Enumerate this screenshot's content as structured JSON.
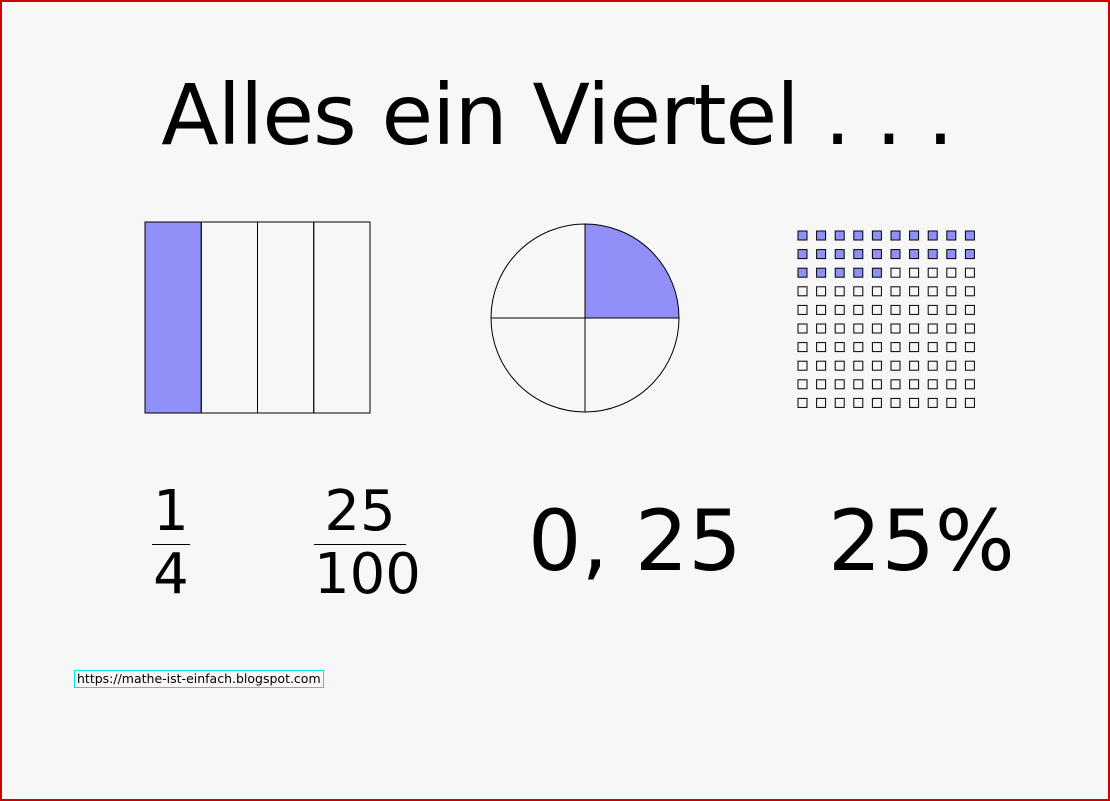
{
  "title": "Alles ein Viertel . . .",
  "colors": {
    "fill": "#9090f8",
    "stroke": "#000000",
    "background": "#f7f7f7",
    "border": "#cc0000",
    "link_border": "#00e5e5"
  },
  "rectangle_model": {
    "parts": 4,
    "shaded_parts": 1
  },
  "circle_model": {
    "parts": 4,
    "shaded_parts": 1
  },
  "grid_model": {
    "rows": 10,
    "cols": 10,
    "shaded_cells": 25
  },
  "representations": {
    "fraction": {
      "numerator": "1",
      "denominator": "4"
    },
    "fraction_hundredths": {
      "numerator": "25",
      "denominator": "100"
    },
    "decimal": "0, 25",
    "percent": "25%"
  },
  "url": "https://mathe-ist-einfach.blogspot.com"
}
